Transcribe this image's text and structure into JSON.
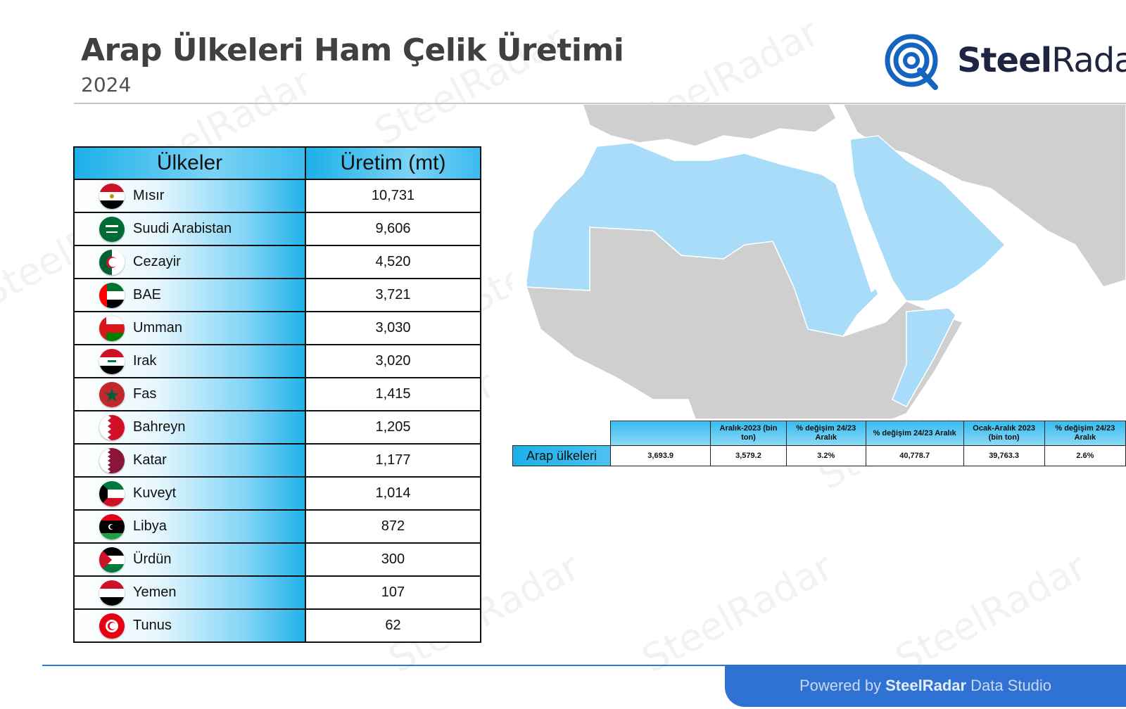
{
  "header": {
    "title": "Arap Ülkeleri Ham Çelik Üretimi",
    "subtitle": "2024"
  },
  "logo": {
    "name_bold": "Steel",
    "name_regular": "Radar",
    "icon": "radar-target-icon",
    "color": "#1565c0"
  },
  "watermark_text": "SteelRadar",
  "chart_data": {
    "type": "table",
    "columns": [
      "Ülkeler",
      "Üretim (mt)"
    ],
    "rows": [
      {
        "country": "Mısır",
        "value": "10,731",
        "flag": "egypt-flag-icon"
      },
      {
        "country": "Suudi Arabistan",
        "value": "9,606",
        "flag": "saudi-arabia-flag-icon"
      },
      {
        "country": "Cezayir",
        "value": "4,520",
        "flag": "algeria-flag-icon"
      },
      {
        "country": "BAE",
        "value": "3,721",
        "flag": "uae-flag-icon"
      },
      {
        "country": "Umman",
        "value": "3,030",
        "flag": "oman-flag-icon"
      },
      {
        "country": "Irak",
        "value": "3,020",
        "flag": "iraq-flag-icon"
      },
      {
        "country": "Fas",
        "value": "1,415",
        "flag": "morocco-flag-icon"
      },
      {
        "country": "Bahreyn",
        "value": "1,205",
        "flag": "bahrain-flag-icon"
      },
      {
        "country": "Katar",
        "value": "1,177",
        "flag": "qatar-flag-icon"
      },
      {
        "country": "Kuveyt",
        "value": "1,014",
        "flag": "kuwait-flag-icon"
      },
      {
        "country": "Libya",
        "value": "872",
        "flag": "libya-flag-icon"
      },
      {
        "country": "Ürdün",
        "value": "300",
        "flag": "jordan-flag-icon"
      },
      {
        "country": "Yemen",
        "value": "107",
        "flag": "yemen-flag-icon"
      },
      {
        "country": "Tunus",
        "value": "62",
        "flag": "tunisia-flag-icon"
      }
    ]
  },
  "summary": {
    "headers": [
      "",
      "Aralık-2023 (bin ton)",
      "% değişim 24/23 Aralık",
      "% değişim 24/23 Aralık",
      "Ocak-Aralık 2023 (bin ton)",
      "% değişim 24/23 Aralık"
    ],
    "row_label": "Arap ülkeleri",
    "values": [
      "3,693.9",
      "3,579.2",
      "3.2%",
      "40,778.7",
      "39,763.3",
      "2.6%"
    ]
  },
  "map": {
    "highlight_color": "#a9dcf8",
    "other_color": "#cfcfcf",
    "icon": "arab-world-map"
  },
  "footer": {
    "prefix": "Powered by",
    "brand": "SteelRadar",
    "suffix": "Data Studio"
  }
}
